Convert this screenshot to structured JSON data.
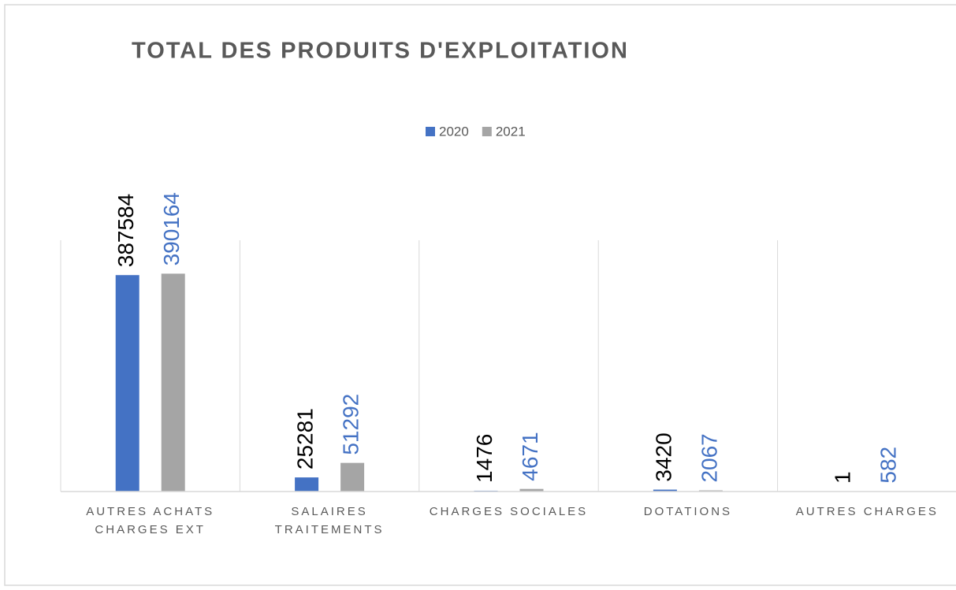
{
  "chart_data": {
    "type": "bar",
    "title": "TOTAL DES PRODUITS D'EXPLOITATION",
    "categories": [
      "AUTRES ACHATS CHARGES EXT",
      "SALAIRES TRAITEMENTS",
      "CHARGES SOCIALES",
      "DOTATIONS",
      "AUTRES CHARGES"
    ],
    "series": [
      {
        "name": "2020",
        "color": "#4472c4",
        "label_color": "#000000",
        "values": [
          387584,
          25281,
          1476,
          3420,
          1
        ]
      },
      {
        "name": "2021",
        "color": "#a5a5a5",
        "label_color": "#4472c4",
        "values": [
          390164,
          51292,
          4671,
          2067,
          582
        ]
      }
    ],
    "ylim": [
      0,
      450000
    ],
    "legend": "top",
    "grid": "vertical-category-separators"
  }
}
